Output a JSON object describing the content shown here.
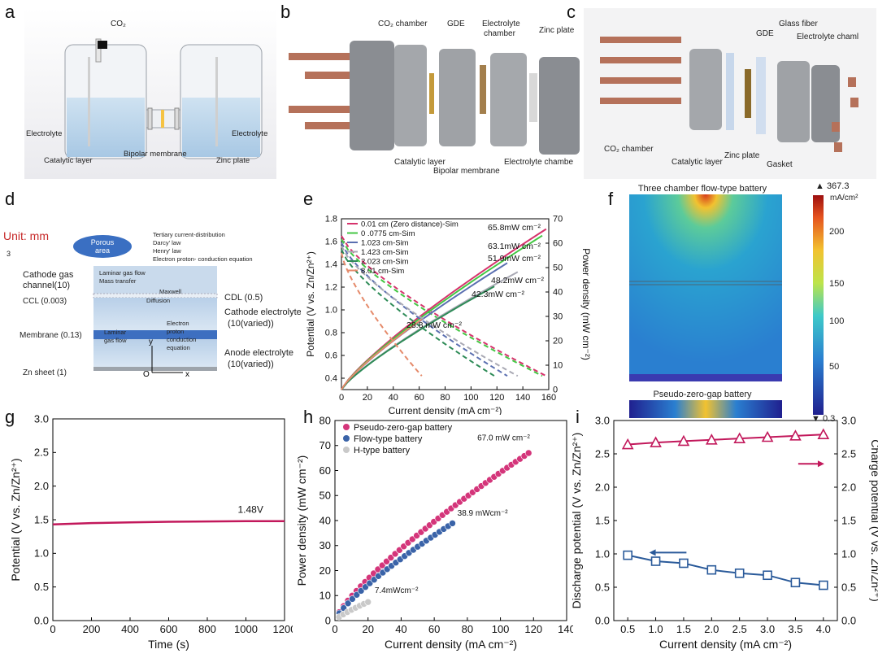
{
  "panel_letters": [
    "a",
    "b",
    "c",
    "d",
    "e",
    "f",
    "g",
    "h",
    "i"
  ],
  "panel_a": {
    "co2": "CO₂",
    "labels": [
      "Electrolyte",
      "Catalytic layer",
      "Bipolar membrane",
      "Zinc plate",
      "Electrolyte"
    ]
  },
  "panel_b": {
    "labels": [
      "CO₂ chamber",
      "GDE",
      "Electrolyte",
      "chamber",
      "Zinc plate",
      "Catalytic layer",
      "Bipolar membrane",
      "Electrolyte chambe"
    ]
  },
  "panel_c": {
    "labels": [
      "Glass fiber",
      "GDE",
      "Electrolyte chaml",
      "CO₂ chamber",
      "Catalytic layer",
      "Zinc plate",
      "Gasket"
    ]
  },
  "panel_d": {
    "unit": "Unit: mm",
    "scale_mark": "3",
    "porous": [
      "Porous",
      "area"
    ],
    "laws": [
      "Tertiary current-distribution",
      "Darcy' law",
      "Henry' law",
      "Electron proton- conduction equation"
    ],
    "left_labels": [
      "Cathode gas",
      "channel(10)",
      "CCL (0.003)",
      "Membrane (0.13)",
      "Zn sheet  (1)"
    ],
    "inner_labels": [
      "Laminar gas flow",
      "Mass transfer",
      "Maxwell",
      "Diffusion",
      "Laminar",
      "gas flow",
      "Electron",
      "proton",
      "conduction",
      "equation"
    ],
    "right_labels": [
      "CDL (0.5)",
      "Cathode electrolyte",
      "(10(varied))",
      "Anode electrolyte",
      "(10(varied))"
    ],
    "axes": [
      "y",
      "O",
      "x"
    ]
  },
  "panel_f": {
    "title": "Three chamber flow-type battery",
    "subtitle": "Pseudo-zero-gap battery",
    "cbar_max": "▲ 367.3",
    "cbar_unit": "mA/cm²",
    "cbar_ticks": [
      "200",
      "150",
      "100",
      "50"
    ],
    "cbar_min": "▼ 0.3"
  },
  "chart_data": [
    {
      "id": "e",
      "type": "line",
      "xlabel": "Current density (mA cm⁻²)",
      "ylabel": "Potential (V vs. Zn/Zn²⁺)",
      "y2label": "Power density (mW cm⁻²)",
      "xlim": [
        0,
        160
      ],
      "ylim": [
        0.3,
        1.8
      ],
      "y2lim": [
        0,
        70
      ],
      "xticks": [
        "0",
        "20",
        "40",
        "60",
        "80",
        "100",
        "120",
        "140",
        "160"
      ],
      "yticks": [
        "0.4",
        "0.6",
        "0.8",
        "1.0",
        "1.2",
        "1.4",
        "1.6",
        "1.8"
      ],
      "y2ticks": [
        "0",
        "10",
        "20",
        "30",
        "40",
        "50",
        "60",
        "70"
      ],
      "series": [
        {
          "name": "0.01 cm (Zero distance)-Sim",
          "color": "#d6336c",
          "xmax": 158,
          "pmax": 65.8
        },
        {
          "name": "0 .0775 cm-Sim",
          "color": "#44c744",
          "xmax": 155,
          "pmax": 63.1
        },
        {
          "name": "1.023 cm-Sim",
          "color": "#5a6fb0",
          "xmax": 128,
          "pmax": 51.9
        },
        {
          "name": "1.423 cm-Sim",
          "color": "#a9a9b4",
          "xmax": 136,
          "pmax": 48.2
        },
        {
          "name": "2.023 cm-Sim",
          "color": "#2e8b57",
          "xmax": 118,
          "pmax": 42.3
        },
        {
          "name": "8.01 cm-Sim",
          "color": "#e58a6a",
          "xmax": 62,
          "pmax": 28.8
        }
      ],
      "annotations": [
        "65.8mW cm⁻²",
        "63.1mW cm⁻²",
        "51.9mW cm⁻²",
        "48.2mW cm⁻²",
        "42.3mW cm⁻²",
        "28.8 mW cm⁻²"
      ]
    },
    {
      "id": "g",
      "type": "line",
      "xlabel": "Time (s)",
      "ylabel": "Potential (V vs. Zn/Zn²⁺)",
      "xlim": [
        0,
        1200
      ],
      "ylim": [
        0,
        3.0
      ],
      "xticks": [
        "0",
        "200",
        "400",
        "600",
        "800",
        "1000",
        "1200"
      ],
      "yticks": [
        "0.0",
        "0.5",
        "1.0",
        "1.5",
        "2.0",
        "2.5",
        "3.0"
      ],
      "series": [
        {
          "name": "potential",
          "color": "#c2185b",
          "x": [
            0,
            200,
            400,
            600,
            800,
            1000,
            1200
          ],
          "y": [
            1.43,
            1.45,
            1.46,
            1.47,
            1.475,
            1.48,
            1.48
          ]
        }
      ],
      "annotations": [
        "1.48V"
      ]
    },
    {
      "id": "h",
      "type": "scatter",
      "xlabel": "Current density (mA cm⁻²)",
      "ylabel": "Power density (mW cm⁻²)",
      "xlim": [
        0,
        140
      ],
      "ylim": [
        0,
        80
      ],
      "xticks": [
        "0",
        "20",
        "40",
        "60",
        "80",
        "100",
        "120",
        "140"
      ],
      "yticks": [
        "0",
        "10",
        "20",
        "30",
        "40",
        "50",
        "60",
        "70",
        "80"
      ],
      "series": [
        {
          "name": "Pseudo-zero-gap battery",
          "color": "#d4357a",
          "xmax": 117,
          "peak": 67.0
        },
        {
          "name": "Flow-type battery",
          "color": "#3a63a8",
          "xmax": 71,
          "peak": 38.9
        },
        {
          "name": "H-type battery",
          "color": "#c9c9c9",
          "xmax": 20,
          "peak": 7.4
        }
      ],
      "annotations": [
        "67.0 mW cm⁻²",
        "38.9 mWcm⁻²",
        "7.4mWcm⁻²"
      ]
    },
    {
      "id": "i",
      "type": "line",
      "xlabel": "Current density (mA cm⁻²)",
      "ylabel": "Discharge potential (V vs. Zn/Zn²⁺)",
      "y2label": "Charge potential (V vs. Zn/Zn²⁺)",
      "xlim": [
        0.25,
        4.25
      ],
      "ylim": [
        0,
        3.0
      ],
      "xticks": [
        "0.5",
        "1.0",
        "1.5",
        "2.0",
        "2.5",
        "3.0",
        "3.5",
        "4.0"
      ],
      "yticks": [
        "0.0",
        "0.5",
        "1.0",
        "1.5",
        "2.0",
        "2.5",
        "3.0"
      ],
      "series": [
        {
          "name": "Charge",
          "color": "#c2185b",
          "marker": "triangle",
          "x": [
            0.5,
            1.0,
            1.5,
            2.0,
            2.5,
            3.0,
            3.5,
            4.0
          ],
          "y": [
            2.64,
            2.67,
            2.69,
            2.71,
            2.73,
            2.75,
            2.77,
            2.79
          ]
        },
        {
          "name": "Discharge",
          "color": "#2a5a9a",
          "marker": "square",
          "x": [
            0.5,
            1.0,
            1.5,
            2.0,
            2.5,
            3.0,
            3.5,
            4.0
          ],
          "y": [
            0.98,
            0.89,
            0.86,
            0.76,
            0.71,
            0.68,
            0.57,
            0.53
          ]
        }
      ]
    }
  ]
}
